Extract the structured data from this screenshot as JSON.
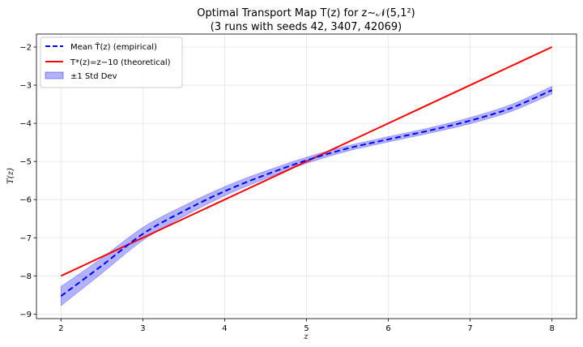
{
  "chart_data": {
    "type": "line",
    "title_line1": "Optimal Transport Map T(z) for z∼𝒩(5,1²)",
    "title_line2": "(3 runs with seeds 42, 3407, 42069)",
    "xlabel": "z",
    "ylabel": "T(z)",
    "xlim": [
      1.7,
      8.3
    ],
    "ylim": [
      -9.12,
      -1.66
    ],
    "xticks": [
      2,
      3,
      4,
      5,
      6,
      7,
      8
    ],
    "yticks": [
      -9,
      -8,
      -7,
      -6,
      -5,
      -4,
      -3,
      -2
    ],
    "grid": true,
    "legend_position": "top-left",
    "legend": [
      "Mean T̂(z) (empirical)",
      "T*(z)=z−10 (theoretical)",
      "±1 Std Dev"
    ],
    "x": [
      2,
      2.5,
      3,
      3.5,
      4,
      4.5,
      5,
      5.5,
      6,
      6.5,
      7,
      7.5,
      8
    ],
    "series": [
      {
        "name": "Mean T̂(z) (empirical)",
        "color": "#0000ff",
        "style": "dashed",
        "values": [
          -8.53,
          -7.73,
          -6.9,
          -6.3,
          -5.78,
          -5.35,
          -4.97,
          -4.66,
          -4.42,
          -4.19,
          -3.93,
          -3.6,
          -3.13
        ]
      },
      {
        "name": "T*(z)=z−10 (theoretical)",
        "color": "#ff0000",
        "style": "solid",
        "values": [
          -8,
          -7.5,
          -7,
          -6.5,
          -6,
          -5.5,
          -5,
          -4.5,
          -4,
          -3.5,
          -3,
          -2.5,
          -2
        ]
      },
      {
        "name": "±1 Std Dev",
        "color": "#0000ff",
        "style": "band",
        "std": [
          0.25,
          0.2,
          0.17,
          0.14,
          0.12,
          0.1,
          0.08,
          0.07,
          0.07,
          0.07,
          0.08,
          0.09,
          0.1
        ]
      }
    ]
  }
}
